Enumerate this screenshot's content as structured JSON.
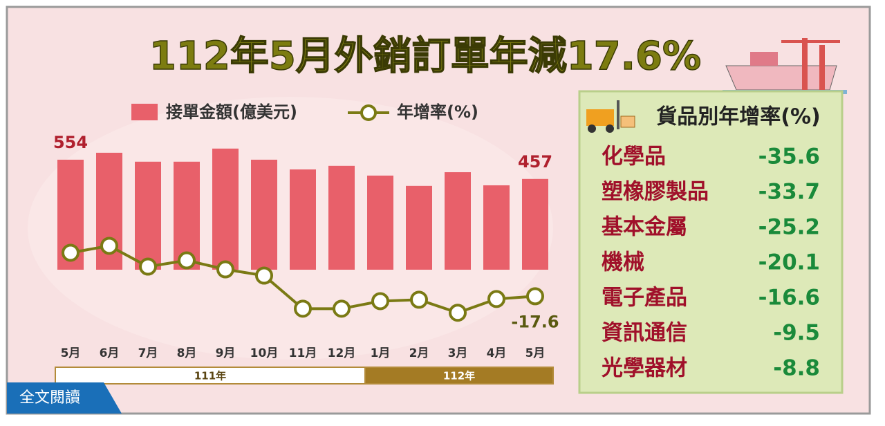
{
  "chart_data": {
    "type": "bar",
    "title": "112年5月外銷訂單年減17.6%",
    "categories": [
      "5月",
      "6月",
      "7月",
      "8月",
      "9月",
      "10月",
      "11月",
      "12月",
      "1月",
      "2月",
      "3月",
      "4月",
      "5月"
    ],
    "periods": [
      "111年",
      "112年"
    ],
    "series": [
      {
        "name": "接單金額(億美元)",
        "type": "bar",
        "color": "#e8606a",
        "values": [
          554,
          589,
          544,
          544,
          610,
          554,
          505,
          523,
          474,
          422,
          491,
          425,
          457
        ]
      },
      {
        "name": "年增率(%)",
        "type": "line",
        "axis": "y2",
        "color": "#7a7a14",
        "values": [
          12.5,
          17.3,
          2.9,
          7.2,
          1.0,
          -3.3,
          -26.2,
          -26.2,
          -21.0,
          -20.0,
          -29.0,
          -19.5,
          -17.6
        ]
      }
    ],
    "ylim": [
      0,
      700
    ],
    "y2lim": [
      -60,
      40
    ]
  },
  "products": {
    "title": "貨品別年增率(%)",
    "items": [
      {
        "name": "化學品",
        "value": -35.6
      },
      {
        "name": "塑橡膠製品",
        "value": -33.7
      },
      {
        "name": "基本金屬",
        "value": -25.2
      },
      {
        "name": "機械",
        "value": -20.1
      },
      {
        "name": "電子產品",
        "value": -16.6
      },
      {
        "name": "資訊通信",
        "value": -9.5
      },
      {
        "name": "光學器材",
        "value": -8.8
      }
    ]
  },
  "button": {
    "label": "全文閱讀"
  }
}
